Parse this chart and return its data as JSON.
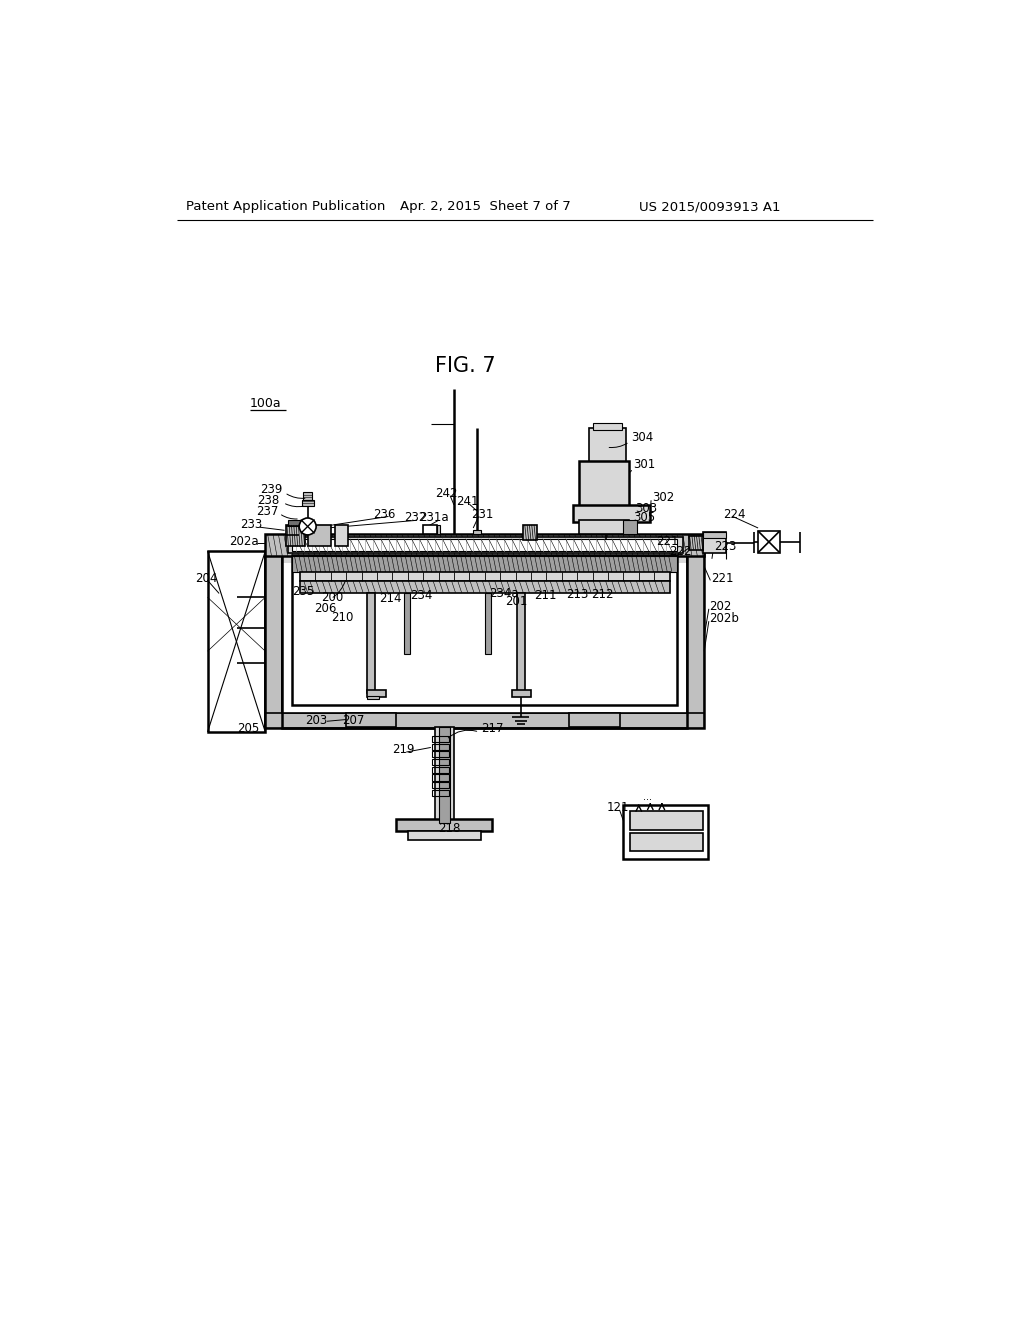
{
  "bg_color": "#ffffff",
  "gray_fill": "#c0c0c0",
  "dark_gray": "#707070",
  "light_gray": "#d8d8d8",
  "med_gray": "#a0a0a0",
  "header_left": "Patent Application Publication",
  "header_mid": "Apr. 2, 2015  Sheet 7 of 7",
  "header_right": "US 2015/0093913 A1",
  "fig_label": "FIG. 7"
}
